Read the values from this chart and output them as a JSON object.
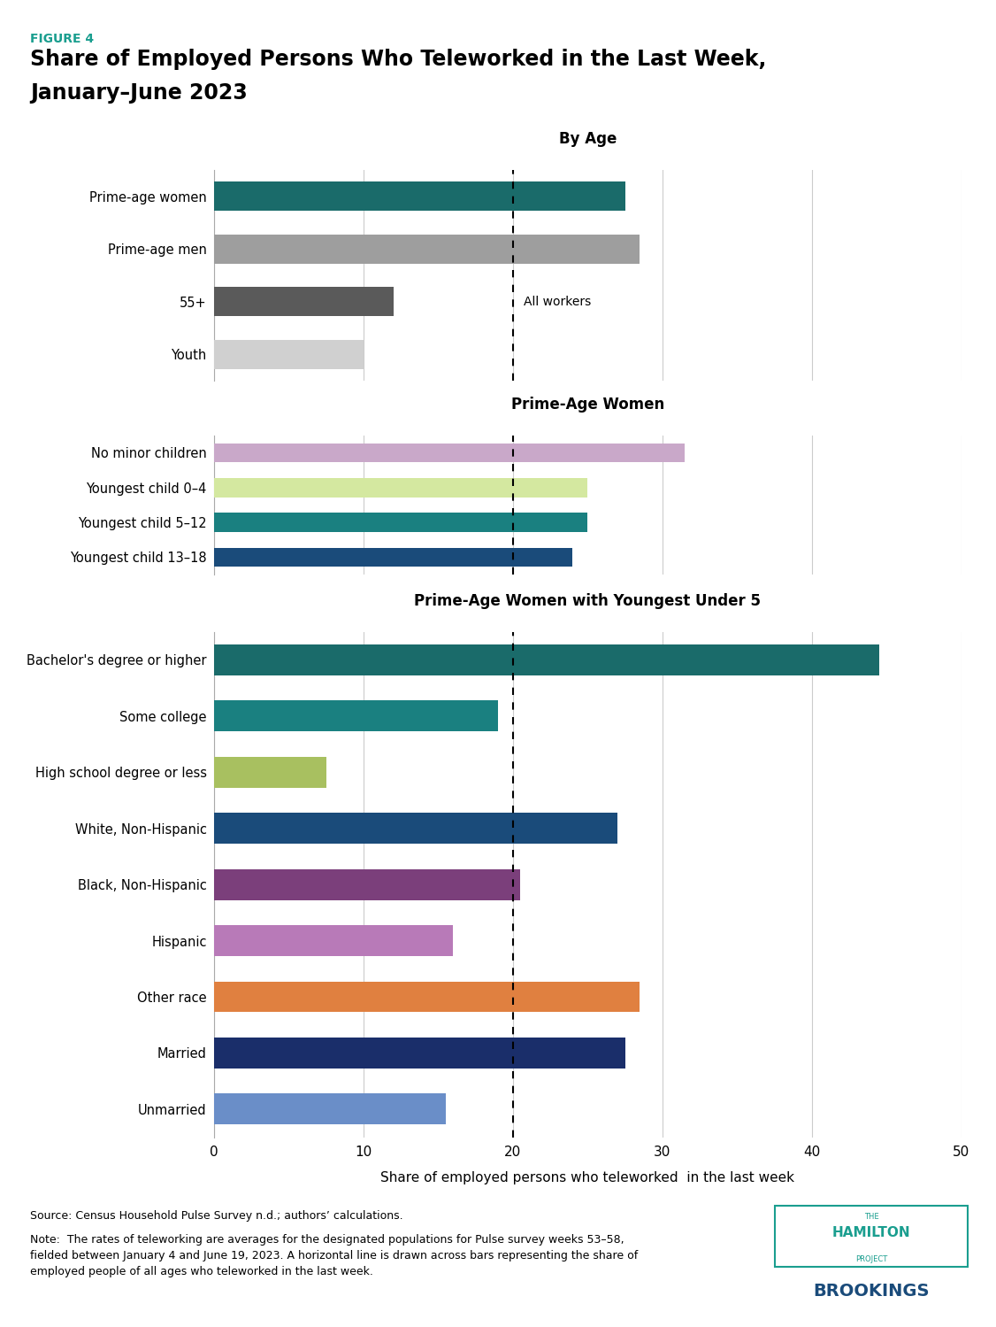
{
  "figure_label": "FIGURE 4",
  "figure_label_color": "#1a9e8f",
  "title_line1": "Share of Employed Persons Who Teleworked in the Last Week,",
  "title_line2": "January–June 2023",
  "xlabel": "Share of employed persons who teleworked  in the last week",
  "xlim": [
    0,
    50
  ],
  "xticks": [
    0,
    10,
    20,
    30,
    40,
    50
  ],
  "all_workers_line": 20,
  "all_workers_label": "All workers",
  "sections": [
    {
      "title": "By Age",
      "bars": [
        {
          "label": "Prime-age women",
          "value": 27.5,
          "color": "#1a6b6a"
        },
        {
          "label": "Prime-age men",
          "value": 28.5,
          "color": "#9e9e9e"
        },
        {
          "label": "55+",
          "value": 12.0,
          "color": "#5a5a5a"
        },
        {
          "label": "Youth",
          "value": 10.0,
          "color": "#d0d0d0"
        }
      ]
    },
    {
      "title": "Prime-Age Women",
      "bars": [
        {
          "label": "No minor children",
          "value": 31.5,
          "color": "#c9a8c9"
        },
        {
          "label": "Youngest child 0–4",
          "value": 25.0,
          "color": "#d4e8a0"
        },
        {
          "label": "Youngest child 5–12",
          "value": 25.0,
          "color": "#1a8080"
        },
        {
          "label": "Youngest child 13–18",
          "value": 24.0,
          "color": "#1a4b7a"
        }
      ]
    },
    {
      "title": "Prime-Age Women with Youngest Under 5",
      "bars": [
        {
          "label": "Bachelor's degree or higher",
          "value": 44.5,
          "color": "#1a6b6a"
        },
        {
          "label": "Some college",
          "value": 19.0,
          "color": "#1a8080"
        },
        {
          "label": "High school degree or less",
          "value": 7.5,
          "color": "#a8c060"
        },
        {
          "label": "White, Non-Hispanic",
          "value": 27.0,
          "color": "#1a4b7a"
        },
        {
          "label": "Black, Non-Hispanic",
          "value": 20.5,
          "color": "#7b3f7b"
        },
        {
          "label": "Hispanic",
          "value": 16.0,
          "color": "#b87ab8"
        },
        {
          "label": "Other race",
          "value": 28.5,
          "color": "#e08040"
        },
        {
          "label": "Married",
          "value": 27.5,
          "color": "#1a2e6a"
        },
        {
          "label": "Unmarried",
          "value": 15.5,
          "color": "#6a8ec8"
        }
      ]
    }
  ],
  "source_text": "Source: Census Household Pulse Survey n.d.; authors’ calculations.",
  "note_text": "Note:  The rates of teleworking are averages for the designated populations for Pulse survey weeks 53–58,\nfielded between January 4 and June 19, 2023. A horizontal line is drawn across bars representing the share of\nemployed people of all ages who teleworked in the last week.",
  "background_color": "#ffffff"
}
